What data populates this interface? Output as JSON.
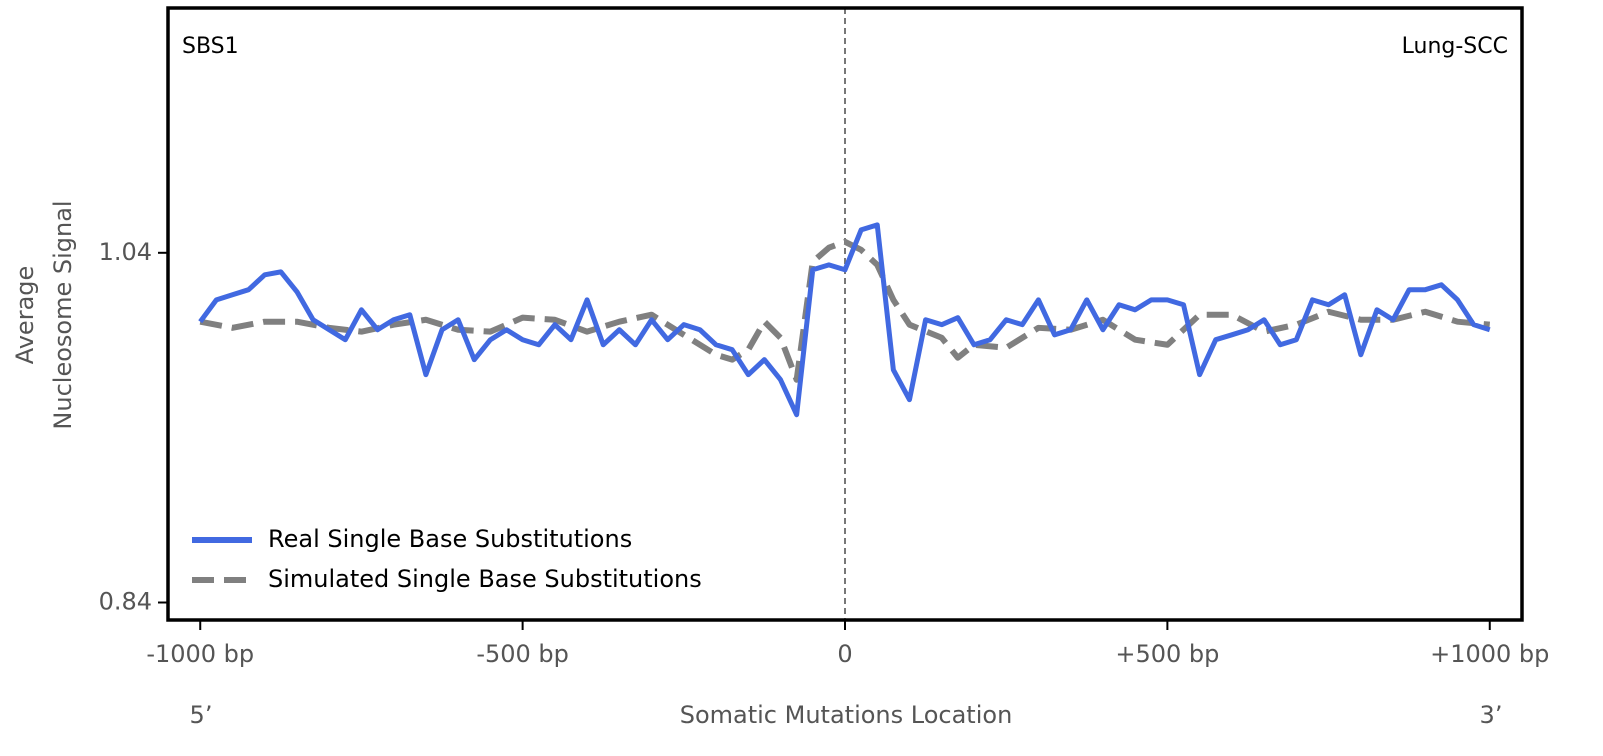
{
  "chart_data": {
    "type": "line",
    "panel_label": "SBS1",
    "cancer_type": "Lung-SCC",
    "xlabel": "Somatic Mutations Location",
    "ylabel_lines": [
      "Average",
      "Nucleosome Signal"
    ],
    "left_end": "5’",
    "right_end": "3’",
    "xlim": [
      -1050,
      1050
    ],
    "xticks": [
      {
        "value": -1000,
        "label": "-1000 bp"
      },
      {
        "value": -500,
        "label": "-500 bp"
      },
      0,
      {
        "value": 500,
        "label": "+500 bp"
      },
      {
        "value": 1000,
        "label": "+1000 bp"
      }
    ],
    "ylim": [
      0.83,
      1.18
    ],
    "yticks": [
      0.84,
      1.04
    ],
    "vline": 0,
    "legend": "lower left",
    "series": [
      {
        "name": "Real Single Base Substitutions",
        "color": "#4169e1",
        "linestyle": "solid",
        "x": [
          -1000,
          -975,
          -950,
          -925,
          -900,
          -875,
          -850,
          -825,
          -800,
          -775,
          -750,
          -725,
          -700,
          -675,
          -650,
          -625,
          -600,
          -575,
          -550,
          -525,
          -500,
          -475,
          -450,
          -425,
          -400,
          -375,
          -350,
          -325,
          -300,
          -275,
          -250,
          -225,
          -200,
          -175,
          -150,
          -125,
          -100,
          -75,
          -50,
          -25,
          0,
          25,
          50,
          75,
          100,
          125,
          150,
          175,
          200,
          225,
          250,
          275,
          300,
          325,
          350,
          375,
          400,
          425,
          450,
          475,
          500,
          525,
          550,
          575,
          600,
          625,
          650,
          675,
          700,
          725,
          750,
          775,
          800,
          825,
          850,
          875,
          900,
          925,
          950,
          975,
          1000
        ],
        "values": [
          1.0006,
          1.0131,
          1.016,
          1.0189,
          1.0274,
          1.0291,
          1.0177,
          1.0017,
          0.996,
          0.9903,
          1.0074,
          0.996,
          1.0017,
          1.0046,
          0.9703,
          0.996,
          1.0017,
          0.9789,
          0.9903,
          0.996,
          0.9903,
          0.9874,
          0.9989,
          0.9903,
          1.0131,
          0.9874,
          0.996,
          0.9874,
          1.0017,
          0.9903,
          0.9989,
          0.996,
          0.9874,
          0.9846,
          0.9703,
          0.9789,
          0.9674,
          0.9474,
          1.0303,
          1.0331,
          1.0303,
          1.0531,
          1.056,
          0.9731,
          0.956,
          1.0017,
          0.9989,
          1.0029,
          0.9874,
          0.9903,
          1.0017,
          0.9989,
          1.0131,
          0.9931,
          0.996,
          1.0131,
          0.996,
          1.0103,
          1.0074,
          1.0131,
          1.0131,
          1.0103,
          0.9703,
          0.9903,
          0.9931,
          0.996,
          1.0017,
          0.9874,
          0.9903,
          1.0131,
          1.0103,
          1.016,
          0.9817,
          1.0074,
          1.0017,
          1.0189,
          1.0189,
          1.0217,
          1.0131,
          0.9989,
          0.996
        ]
      },
      {
        "name": "Simulated Single Base Substitutions",
        "color": "#808080",
        "linestyle": "dashed",
        "x": [
          -1000,
          -950,
          -900,
          -850,
          -800,
          -750,
          -700,
          -650,
          -600,
          -550,
          -500,
          -450,
          -400,
          -350,
          -300,
          -250,
          -200,
          -175,
          -150,
          -125,
          -100,
          -75,
          -50,
          -25,
          0,
          25,
          50,
          75,
          100,
          150,
          175,
          200,
          250,
          300,
          350,
          400,
          450,
          500,
          550,
          600,
          650,
          700,
          750,
          800,
          850,
          900,
          950,
          1000
        ],
        "values": [
          1.0006,
          0.9971,
          1.0006,
          1.0006,
          0.9971,
          0.9949,
          0.9989,
          1.0017,
          0.996,
          0.9949,
          1.0029,
          1.0017,
          0.9949,
          1.0006,
          1.0046,
          0.9931,
          0.9817,
          0.9789,
          0.9846,
          1.0006,
          0.9914,
          0.9674,
          1.0349,
          1.0429,
          1.0463,
          1.0417,
          1.0331,
          1.0131,
          0.9989,
          0.9914,
          0.98,
          0.9874,
          0.9857,
          0.9971,
          0.996,
          1.0017,
          0.9903,
          0.9874,
          1.0046,
          1.0046,
          0.9949,
          0.9989,
          1.0063,
          1.0017,
          1.0017,
          1.0063,
          1.0006,
          0.9989
        ]
      }
    ]
  }
}
